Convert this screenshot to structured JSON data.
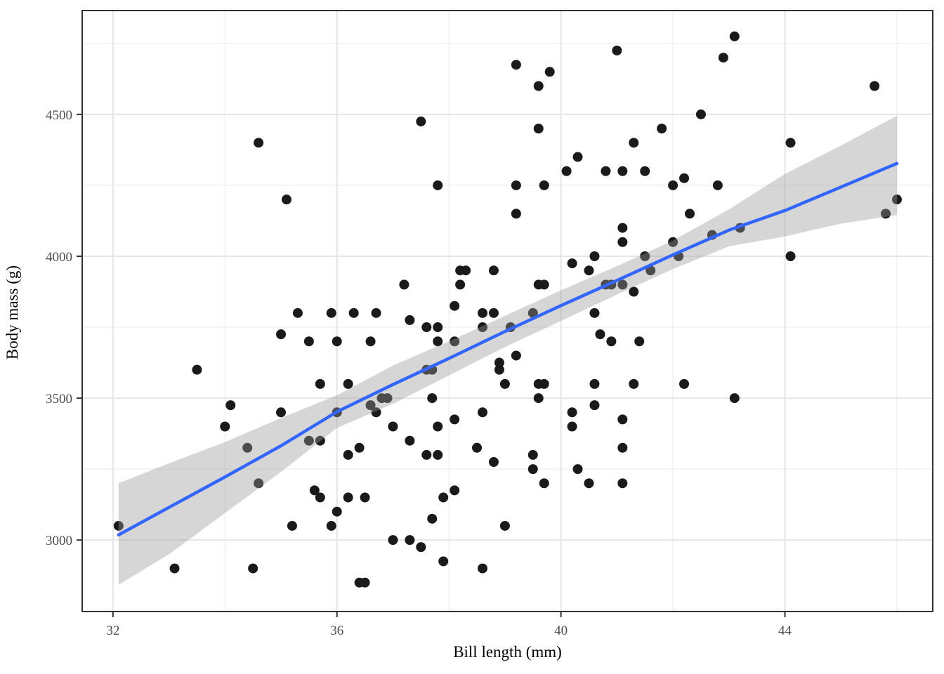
{
  "chart_data": {
    "type": "scatter",
    "title": "",
    "xlabel": "Bill length (mm)",
    "ylabel": "Body mass (g)",
    "x_ticks": [
      32,
      36,
      40,
      44
    ],
    "x_minor_ticks": [
      34,
      38,
      42,
      46
    ],
    "y_ticks": [
      3000,
      3500,
      4000,
      4500
    ],
    "y_minor_ticks": [
      3250,
      3750,
      4250,
      4750
    ],
    "xlim": [
      31.45,
      46.64
    ],
    "ylim": [
      2748,
      4866
    ],
    "grid": true,
    "legend_position": "none",
    "series": [
      {
        "name": "observations",
        "type": "scatter",
        "points": [
          [
            34.6,
            4400
          ],
          [
            35.1,
            4200
          ],
          [
            37.5,
            4475
          ],
          [
            37.8,
            4250
          ],
          [
            39.2,
            4675
          ],
          [
            39.8,
            4650
          ],
          [
            39.6,
            4600
          ],
          [
            41.0,
            4725
          ],
          [
            42.9,
            4700
          ],
          [
            42.5,
            4500
          ],
          [
            39.6,
            4450
          ],
          [
            41.8,
            4450
          ],
          [
            41.3,
            4400
          ],
          [
            40.3,
            4350
          ],
          [
            40.1,
            4300
          ],
          [
            40.8,
            4300
          ],
          [
            41.1,
            4300
          ],
          [
            41.5,
            4300
          ],
          [
            42.0,
            4250
          ],
          [
            42.2,
            4275
          ],
          [
            42.8,
            4250
          ],
          [
            39.7,
            4250
          ],
          [
            39.2,
            4250
          ],
          [
            39.2,
            4150
          ],
          [
            43.1,
            4775
          ],
          [
            45.6,
            4600
          ],
          [
            44.1,
            4400
          ],
          [
            46.0,
            4200
          ],
          [
            45.8,
            4150
          ],
          [
            33.5,
            3600
          ],
          [
            35.0,
            3725
          ],
          [
            35.3,
            3800
          ],
          [
            34.1,
            3475
          ],
          [
            35.0,
            3450
          ],
          [
            35.9,
            3800
          ],
          [
            36.3,
            3800
          ],
          [
            36.7,
            3800
          ],
          [
            37.2,
            3900
          ],
          [
            37.3,
            3775
          ],
          [
            37.6,
            3750
          ],
          [
            37.8,
            3750
          ],
          [
            37.8,
            3700
          ],
          [
            35.5,
            3700
          ],
          [
            36.0,
            3700
          ],
          [
            36.6,
            3700
          ],
          [
            38.1,
            3825
          ],
          [
            38.2,
            3950
          ],
          [
            38.3,
            3950
          ],
          [
            38.2,
            3900
          ],
          [
            38.8,
            3950
          ],
          [
            38.6,
            3800
          ],
          [
            38.8,
            3800
          ],
          [
            38.6,
            3750
          ],
          [
            39.1,
            3750
          ],
          [
            38.1,
            3700
          ],
          [
            37.6,
            3600
          ],
          [
            37.7,
            3600
          ],
          [
            38.9,
            3625
          ],
          [
            38.9,
            3600
          ],
          [
            39.0,
            3550
          ],
          [
            35.7,
            3550
          ],
          [
            36.2,
            3550
          ],
          [
            36.9,
            3500
          ],
          [
            36.8,
            3500
          ],
          [
            36.6,
            3475
          ],
          [
            36.7,
            3450
          ],
          [
            36.0,
            3450
          ],
          [
            37.7,
            3500
          ],
          [
            38.6,
            3450
          ],
          [
            42.3,
            4150
          ],
          [
            41.1,
            4100
          ],
          [
            41.1,
            4050
          ],
          [
            42.0,
            4050
          ],
          [
            42.7,
            4075
          ],
          [
            41.5,
            4000
          ],
          [
            42.1,
            4000
          ],
          [
            40.6,
            4000
          ],
          [
            40.2,
            3975
          ],
          [
            40.5,
            3950
          ],
          [
            41.6,
            3950
          ],
          [
            39.6,
            3900
          ],
          [
            39.7,
            3900
          ],
          [
            40.8,
            3900
          ],
          [
            40.9,
            3900
          ],
          [
            41.1,
            3900
          ],
          [
            41.3,
            3875
          ],
          [
            39.5,
            3800
          ],
          [
            40.6,
            3800
          ],
          [
            40.7,
            3725
          ],
          [
            40.9,
            3700
          ],
          [
            41.4,
            3700
          ],
          [
            39.2,
            3650
          ],
          [
            39.6,
            3550
          ],
          [
            39.7,
            3550
          ],
          [
            40.6,
            3550
          ],
          [
            41.3,
            3550
          ],
          [
            42.2,
            3550
          ],
          [
            39.6,
            3500
          ],
          [
            40.6,
            3475
          ],
          [
            43.2,
            4100
          ],
          [
            44.1,
            4000
          ],
          [
            43.1,
            3500
          ],
          [
            34.0,
            3400
          ],
          [
            34.4,
            3325
          ],
          [
            34.6,
            3200
          ],
          [
            32.1,
            3050
          ],
          [
            35.2,
            3050
          ],
          [
            33.1,
            2900
          ],
          [
            34.5,
            2900
          ],
          [
            35.5,
            3350
          ],
          [
            35.7,
            3350
          ],
          [
            36.2,
            3300
          ],
          [
            36.4,
            3325
          ],
          [
            37.0,
            3400
          ],
          [
            37.3,
            3350
          ],
          [
            37.6,
            3300
          ],
          [
            37.8,
            3300
          ],
          [
            37.8,
            3400
          ],
          [
            38.1,
            3425
          ],
          [
            38.5,
            3325
          ],
          [
            38.8,
            3275
          ],
          [
            35.6,
            3175
          ],
          [
            35.7,
            3150
          ],
          [
            36.2,
            3150
          ],
          [
            36.5,
            3150
          ],
          [
            36.0,
            3100
          ],
          [
            35.9,
            3050
          ],
          [
            37.9,
            3150
          ],
          [
            38.1,
            3175
          ],
          [
            37.7,
            3075
          ],
          [
            37.0,
            3000
          ],
          [
            37.3,
            3000
          ],
          [
            37.5,
            2975
          ],
          [
            37.9,
            2925
          ],
          [
            36.4,
            2850
          ],
          [
            36.5,
            2850
          ],
          [
            38.6,
            2900
          ],
          [
            40.2,
            3450
          ],
          [
            40.2,
            3400
          ],
          [
            41.1,
            3425
          ],
          [
            41.1,
            3325
          ],
          [
            39.5,
            3300
          ],
          [
            39.5,
            3250
          ],
          [
            39.7,
            3200
          ],
          [
            40.3,
            3250
          ],
          [
            40.5,
            3200
          ],
          [
            41.1,
            3200
          ],
          [
            39.0,
            3050
          ]
        ]
      }
    ],
    "smooth": {
      "name": "regression-smooth",
      "line": [
        [
          32.1,
          3018
        ],
        [
          33,
          3115
        ],
        [
          34,
          3222
        ],
        [
          35,
          3332
        ],
        [
          36,
          3452
        ],
        [
          37,
          3548
        ],
        [
          38,
          3640
        ],
        [
          39,
          3735
        ],
        [
          40,
          3826
        ],
        [
          41,
          3915
        ],
        [
          42,
          4005
        ],
        [
          43,
          4092
        ],
        [
          44,
          4161
        ],
        [
          45,
          4244
        ],
        [
          46,
          4327
        ]
      ],
      "ribbon_x": [
        32.1,
        33,
        34,
        35,
        36,
        37,
        38,
        39,
        40,
        41,
        42,
        43,
        44,
        45,
        46
      ],
      "ribbon_upper": [
        3200,
        3270,
        3345,
        3430,
        3510,
        3615,
        3700,
        3790,
        3880,
        3965,
        4055,
        4165,
        4290,
        4390,
        4495
      ],
      "ribbon_lower": [
        2842,
        2950,
        3095,
        3240,
        3395,
        3480,
        3580,
        3680,
        3772,
        3865,
        3955,
        4035,
        4070,
        4115,
        4145
      ]
    },
    "colors": {
      "point": "#1a1a1a",
      "smooth_line": "#3366FF",
      "ribbon_fill": "#999999",
      "ribbon_opacity": 0.4,
      "grid_major": "#e6e6e6",
      "grid_minor": "#f0f0f0",
      "panel_border": "#333333",
      "tick_mark": "#333333",
      "tick_label": "#4d4d4d",
      "axis_title": "#000000",
      "background": "#ffffff"
    }
  }
}
